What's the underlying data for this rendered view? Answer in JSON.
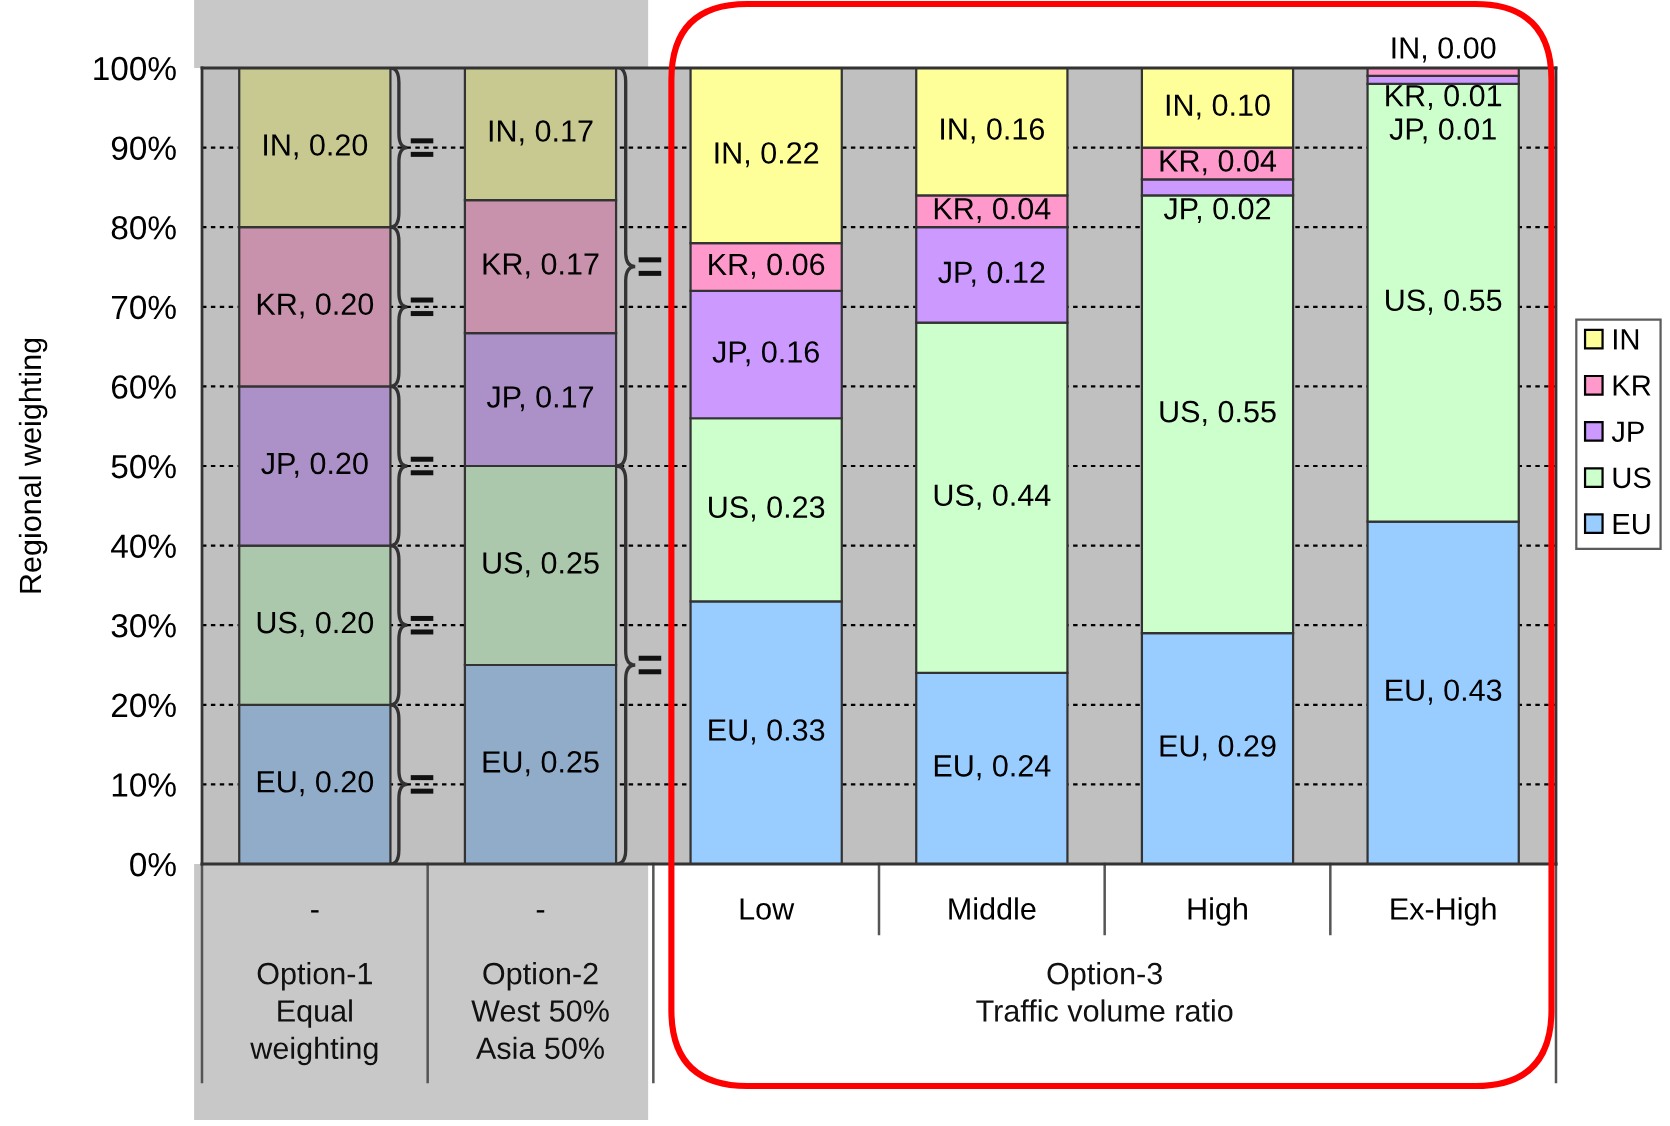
{
  "chart_data": {
    "type": "bar",
    "stacked": true,
    "ylabel": "Regional weighting",
    "categories": [
      "-",
      "-",
      "Low",
      "Middle",
      "High",
      "Ex-High"
    ],
    "ylim": [
      0,
      1
    ],
    "yticks": [
      {
        "value": 0,
        "label": "0%"
      },
      {
        "value": 0.1,
        "label": "10%"
      },
      {
        "value": 0.2,
        "label": "20%"
      },
      {
        "value": 0.3,
        "label": "30%"
      },
      {
        "value": 0.4,
        "label": "40%"
      },
      {
        "value": 0.5,
        "label": "50%"
      },
      {
        "value": 0.6,
        "label": "60%"
      },
      {
        "value": 0.7,
        "label": "70%"
      },
      {
        "value": 0.8,
        "label": "80%"
      },
      {
        "value": 0.9,
        "label": "90%"
      },
      {
        "value": 1,
        "label": "100%"
      }
    ],
    "grid": "y",
    "legend": "right",
    "annotations": [
      "Option-1\nEqual\nweighting",
      "Option-2\nWest 50%\nAsia 50%",
      "Option-3\nTraffic volume ratio"
    ],
    "series": [
      {
        "name": "EU",
        "color": "#99ccff",
        "colors": [
          "#91acc8",
          "#91acc8",
          "#99ccff",
          "#99ccff",
          "#99ccff",
          "#99ccff"
        ],
        "values": [
          0.2,
          0.25,
          0.33,
          0.24,
          0.29,
          0.43
        ],
        "value_labels": [
          "EU, 0.20",
          "EU, 0.25",
          "EU, 0.33",
          "EU, 0.24",
          "EU, 0.29",
          "EU, 0.43"
        ]
      },
      {
        "name": "US",
        "color": "#ccffcc",
        "colors": [
          "#acc8ac",
          "#acc8ac",
          "#ccffcc",
          "#ccffcc",
          "#ccffcc",
          "#ccffcc"
        ],
        "values": [
          0.2,
          0.25,
          0.23,
          0.44,
          0.55,
          0.55
        ],
        "value_labels": [
          "US, 0.20",
          "US, 0.25",
          "US, 0.23",
          "US, 0.44",
          "US, 0.55",
          "US, 0.55"
        ]
      },
      {
        "name": "JP",
        "color": "#cc99ff",
        "colors": [
          "#ac91c8",
          "#ac91c8",
          "#cc99ff",
          "#cc99ff",
          "#cc99ff",
          "#cc99ff"
        ],
        "values": [
          0.2,
          0.167,
          0.16,
          0.12,
          0.02,
          0.01
        ],
        "value_labels": [
          "JP, 0.20",
          "JP, 0.17",
          "JP, 0.16",
          "JP, 0.12",
          "JP, 0.02",
          "JP, 0.01"
        ]
      },
      {
        "name": "KR",
        "color": "#ff99cc",
        "colors": [
          "#c891ac",
          "#c891ac",
          "#ff99cc",
          "#ff99cc",
          "#ff99cc",
          "#ff99cc"
        ],
        "values": [
          0.2,
          0.167,
          0.06,
          0.04,
          0.04,
          0.01
        ],
        "value_labels": [
          "KR, 0.20",
          "KR, 0.17",
          "KR, 0.06",
          "KR, 0.04",
          "KR, 0.04",
          "KR, 0.01"
        ]
      },
      {
        "name": "IN",
        "color": "#ffff99",
        "colors": [
          "#c8c891",
          "#c8c891",
          "#ffff99",
          "#ffff99",
          "#ffff99",
          "#ffff99"
        ],
        "values": [
          0.2,
          0.167,
          0.22,
          0.16,
          0.1,
          0.0
        ],
        "value_labels": [
          "IN, 0.20",
          "IN, 0.17",
          "IN, 0.22",
          "IN, 0.16",
          "IN, 0.10",
          "IN, 0.00"
        ]
      }
    ]
  }
}
